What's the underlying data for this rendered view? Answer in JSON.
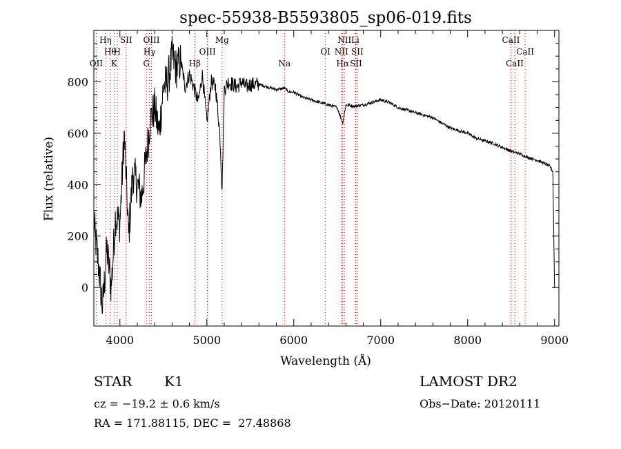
{
  "chart_data": {
    "type": "line",
    "title": "spec-55938-B5593805_sp06-019.fits",
    "xlabel": "Wavelength (Å)",
    "ylabel": "Flux (relative)",
    "xlim": [
      3700,
      9050
    ],
    "ylim": [
      -150,
      1000
    ],
    "x_ticks": [
      4000,
      5000,
      6000,
      7000,
      8000,
      9000
    ],
    "y_ticks": [
      0,
      200,
      400,
      600,
      800
    ],
    "grid": false,
    "series": [
      {
        "x": [
          3700,
          3750,
          3800,
          3850,
          3900,
          3950,
          4000,
          4050,
          4100,
          4150,
          4200,
          4250,
          4300,
          4350,
          4400,
          4450,
          4500,
          4550,
          4600,
          4650,
          4700,
          4750,
          4800,
          4850,
          4900,
          4950,
          5000,
          5050,
          5100,
          5150,
          5175,
          5200,
          5250,
          5300,
          5350,
          5400,
          5450,
          5500,
          5600,
          5700,
          5800,
          5890,
          5950,
          6000,
          6100,
          6200,
          6300,
          6400,
          6500,
          6563,
          6600,
          6700,
          6800,
          6900,
          7000,
          7100,
          7200,
          7300,
          7400,
          7500,
          7600,
          7700,
          7800,
          7900,
          8000,
          8100,
          8200,
          8300,
          8400,
          8500,
          8600,
          8700,
          8800,
          8900,
          8950,
          8980,
          9000
        ],
        "y": [
          250,
          100,
          -80,
          150,
          0,
          280,
          250,
          600,
          200,
          450,
          400,
          350,
          500,
          650,
          700,
          600,
          780,
          800,
          900,
          850,
          880,
          780,
          830,
          780,
          720,
          830,
          640,
          800,
          780,
          600,
          380,
          770,
          800,
          790,
          780,
          800,
          780,
          790,
          790,
          780,
          770,
          775,
          760,
          760,
          740,
          730,
          720,
          710,
          700,
          640,
          710,
          705,
          710,
          720,
          730,
          720,
          700,
          690,
          680,
          670,
          660,
          640,
          620,
          610,
          600,
          580,
          570,
          560,
          545,
          530,
          520,
          505,
          495,
          480,
          470,
          450,
          0
        ]
      }
    ],
    "lines": [
      {
        "label": "Hη",
        "x": 3835,
        "row": 0
      },
      {
        "label": "Hθ",
        "x": 3889,
        "row": 1
      },
      {
        "label": "OII",
        "x": 3727,
        "row": 2
      },
      {
        "label": "SII",
        "x": 4072,
        "row": 0
      },
      {
        "label": "H",
        "x": 3968,
        "row": 1
      },
      {
        "label": "K",
        "x": 3933,
        "row": 2
      },
      {
        "label": "OIII",
        "x": 4363,
        "row": 0
      },
      {
        "label": "Hγ",
        "x": 4341,
        "row": 1
      },
      {
        "label": "G",
        "x": 4305,
        "row": 2
      },
      {
        "label": "Mg",
        "x": 5175,
        "row": 0
      },
      {
        "label": "OIII",
        "x": 5007,
        "row": 1
      },
      {
        "label": "Hβ",
        "x": 4861,
        "row": 2
      },
      {
        "label": "Na",
        "x": 5893,
        "row": 2
      },
      {
        "label": "NII",
        "x": 6583,
        "row": 0
      },
      {
        "label": "Li",
        "x": 6708,
        "row": 0
      },
      {
        "label": "OI",
        "x": 6364,
        "row": 1
      },
      {
        "label": "NII",
        "x": 6548,
        "row": 1
      },
      {
        "label": "SII",
        "x": 6731,
        "row": 1
      },
      {
        "label": "Hα",
        "x": 6563,
        "row": 2
      },
      {
        "label": "SII",
        "x": 6716,
        "row": 2
      },
      {
        "label": "CaII",
        "x": 8498,
        "row": 0
      },
      {
        "label": "CaII",
        "x": 8662,
        "row": 1
      },
      {
        "label": "CaII",
        "x": 8542,
        "row": 2
      }
    ],
    "line_color": "#cc0000"
  },
  "info": {
    "object_class": "STAR",
    "subclass": "K1",
    "survey": "LAMOST DR2",
    "cz": "cz = −19.2 ± 0.6 km/s",
    "obs_date": "Obs−Date: 20120111",
    "radec": "RA = 171.88115, DEC =  27.48868"
  }
}
